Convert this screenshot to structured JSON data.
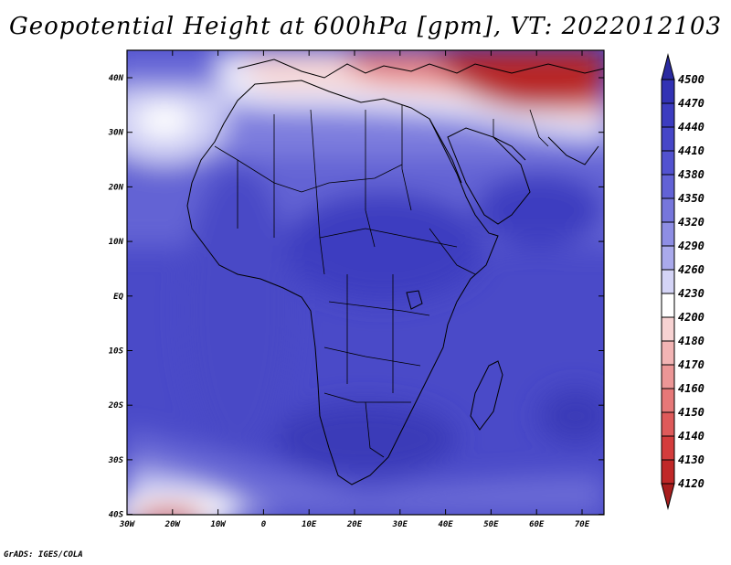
{
  "title": "Geopotential Height at 600hPa [gpm], VT: 2022012103",
  "credit": "GrADS: IGES/COLA",
  "lat_labels": [
    "40N",
    "30N",
    "20N",
    "10N",
    "EQ",
    "10S",
    "20S",
    "30S",
    "40S"
  ],
  "lon_labels": [
    "30W",
    "20W",
    "10W",
    "0",
    "10E",
    "20E",
    "30E",
    "40E",
    "50E",
    "60E",
    "70E"
  ],
  "colorbar": {
    "levels": [
      "4500",
      "4470",
      "4440",
      "4410",
      "4380",
      "4350",
      "4320",
      "4290",
      "4260",
      "4230",
      "4200",
      "4180",
      "4170",
      "4160",
      "4150",
      "4140",
      "4130",
      "4120"
    ],
    "colors": [
      "#2a2aa0",
      "#3232b4",
      "#3c3cc0",
      "#4646c8",
      "#5252d0",
      "#6262d6",
      "#7676dc",
      "#8e8ee4",
      "#aaaaec",
      "#d4d4f6",
      "#ffffff",
      "#f7d2d2",
      "#f2b4b4",
      "#ec9696",
      "#e67878",
      "#de5a5a",
      "#d43c3c",
      "#c02828",
      "#a81e1e"
    ]
  }
}
